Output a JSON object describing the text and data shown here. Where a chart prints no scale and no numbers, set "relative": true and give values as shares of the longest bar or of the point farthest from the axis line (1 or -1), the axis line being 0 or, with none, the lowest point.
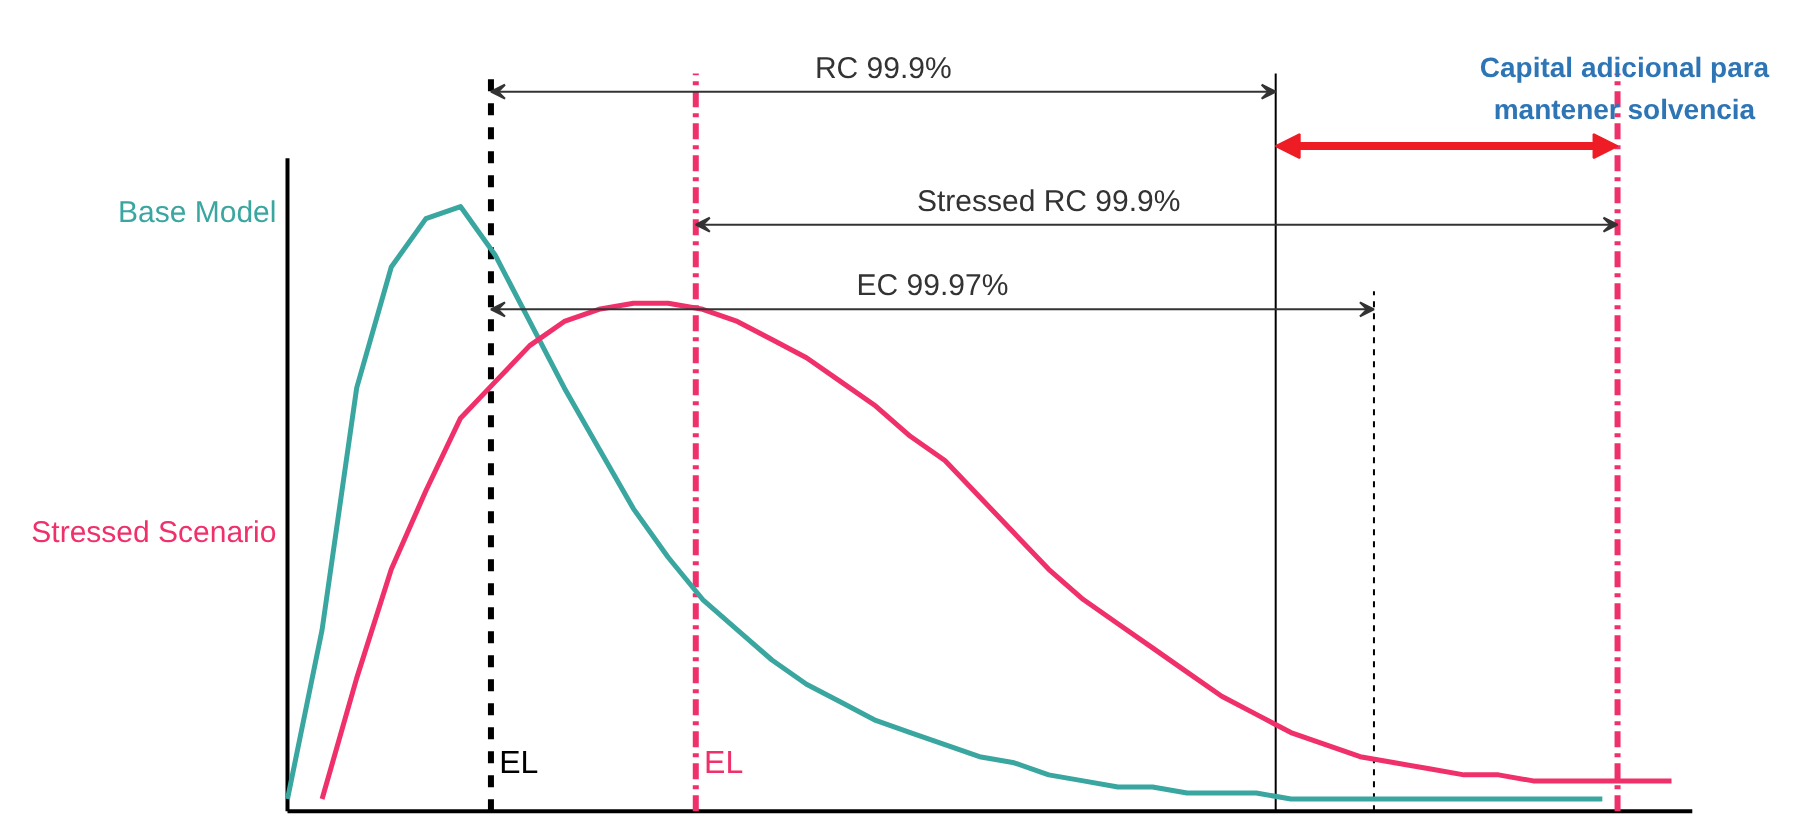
{
  "chart_data": {
    "type": "line",
    "relative": true,
    "line_style": "solid",
    "marker": "none",
    "grid": false,
    "categories": [
      null,
      null,
      null,
      null,
      null,
      null,
      null,
      null,
      null,
      null,
      null,
      null,
      null,
      null,
      null,
      null,
      null,
      null,
      null,
      null,
      null,
      null,
      null,
      null,
      null,
      null,
      null,
      null,
      null,
      null,
      null,
      null,
      null,
      null,
      null,
      null,
      null,
      null,
      null,
      null,
      null
    ],
    "series": [
      {
        "name": "Base Model",
        "color": "#3aa6a0",
        "values": [
          0.02,
          0.3,
          0.7,
          0.9,
          0.98,
          1,
          0.92,
          0.81,
          0.7,
          0.6,
          0.5,
          0.42,
          0.35,
          0.3,
          0.25,
          0.21,
          0.18,
          0.15,
          0.13,
          0.11,
          0.09,
          0.08,
          0.06,
          0.05,
          0.04,
          0.04,
          0.03,
          0.03,
          0.03,
          0.02,
          0.02,
          0.02,
          0.02,
          0.02,
          0.02,
          0.02,
          0.02,
          0.02,
          0.02,
          null,
          null
        ]
      },
      {
        "name": "Stressed Scenario",
        "color": "#f0306a",
        "values": [
          null,
          0.02,
          0.22,
          0.4,
          0.53,
          0.65,
          0.71,
          0.77,
          0.81,
          0.83,
          0.84,
          0.84,
          0.83,
          0.81,
          0.78,
          0.75,
          0.71,
          0.67,
          0.62,
          0.58,
          0.52,
          0.46,
          0.4,
          0.35,
          0.31,
          0.27,
          0.23,
          0.19,
          0.16,
          0.13,
          0.11,
          0.09,
          0.08,
          0.07,
          0.06,
          0.06,
          0.05,
          0.05,
          0.05,
          0.05,
          0.05
        ]
      }
    ],
    "annotations": [
      "RC 99.9%",
      "Stressed RC 99.9%",
      "EC 99.97%",
      "Capital adicional para\nmantener solvencia",
      "EL",
      "EL"
    ]
  }
}
